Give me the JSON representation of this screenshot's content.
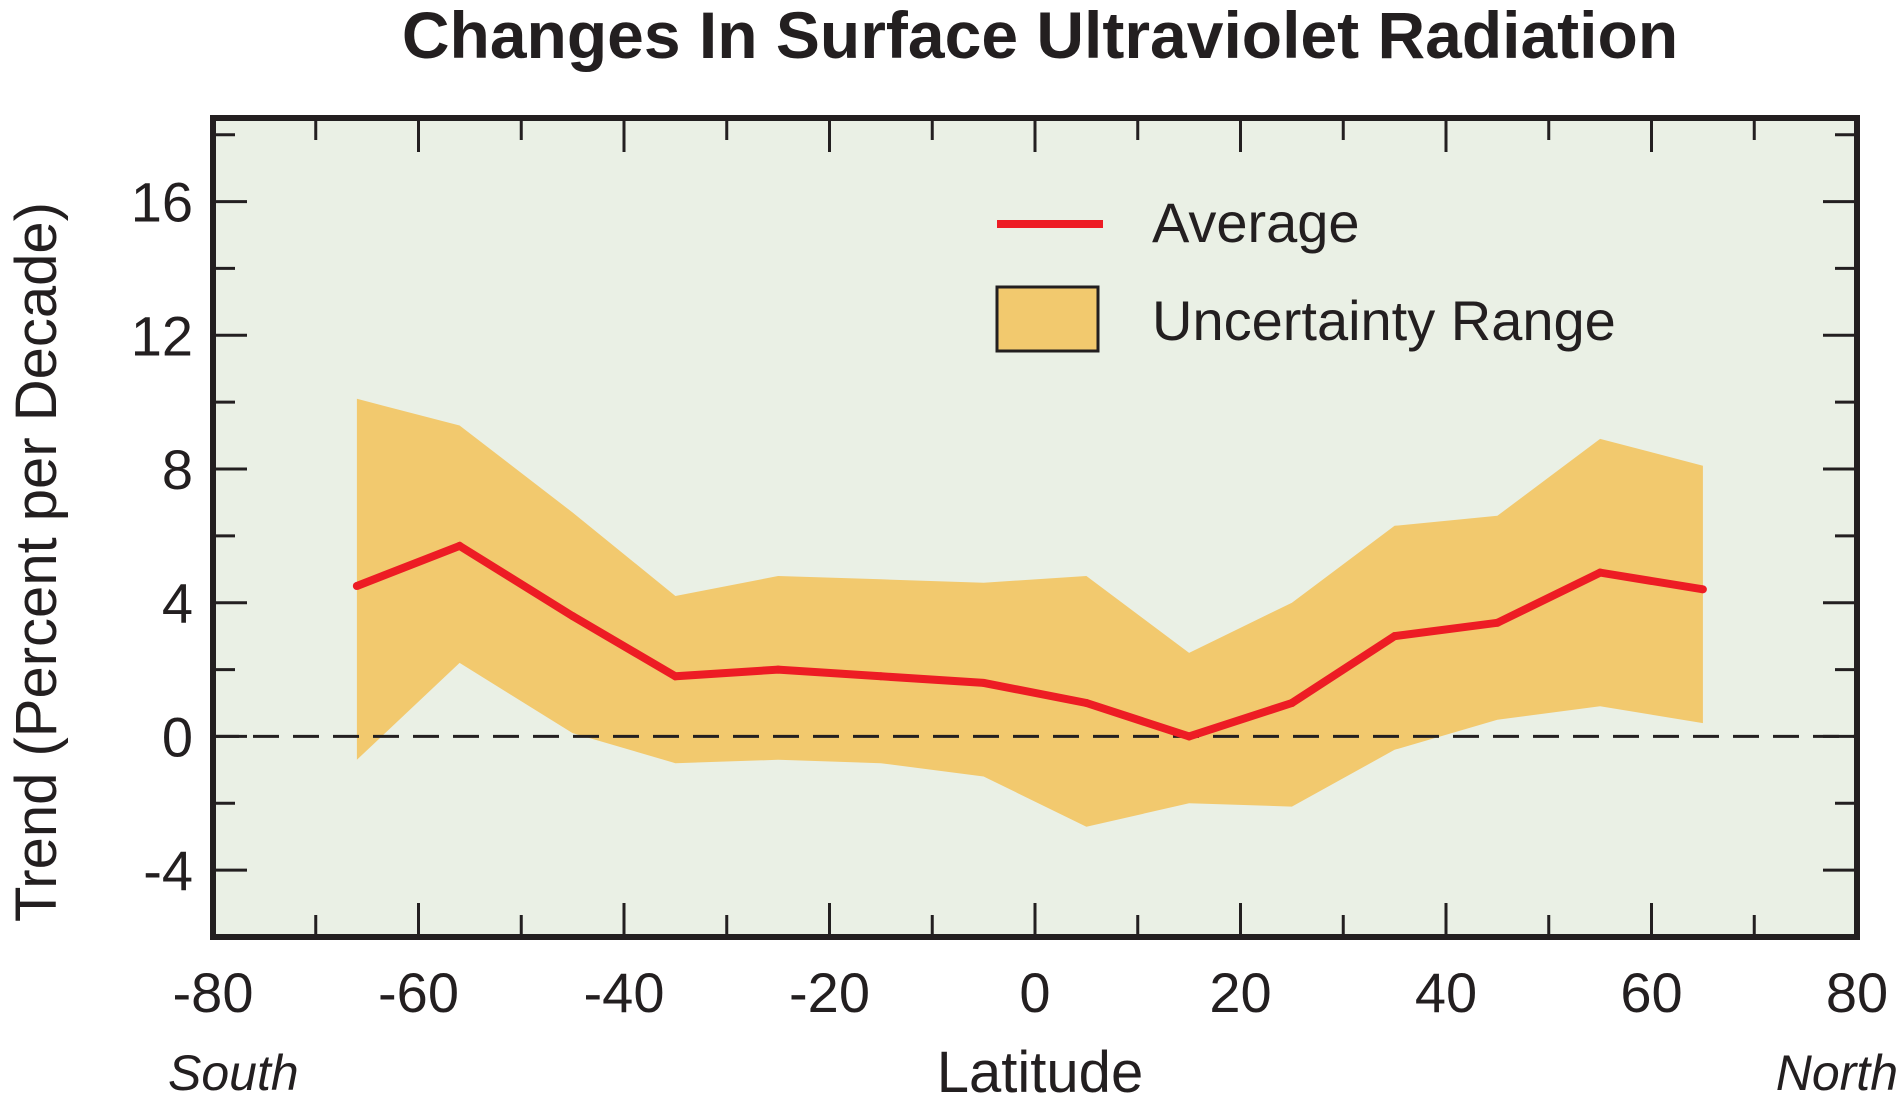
{
  "chart_data": {
    "type": "line",
    "title": "Changes In Surface Ultraviolet Radiation",
    "xlabel": "Latitude",
    "ylabel": "Trend (Percent per Decade)",
    "x_direction_labels": {
      "left": "South",
      "right": "North"
    },
    "xlim": [
      -80,
      80
    ],
    "ylim": [
      -6,
      18.5
    ],
    "x_ticks": [
      -80,
      -60,
      -40,
      -20,
      0,
      20,
      40,
      60,
      80
    ],
    "y_ticks": [
      -4,
      0,
      4,
      8,
      12,
      16
    ],
    "x": [
      -66,
      -56,
      -45,
      -35,
      -25,
      -15,
      -5,
      5,
      15,
      25,
      35,
      45,
      55,
      65
    ],
    "series": [
      {
        "name": "Average",
        "values": [
          4.5,
          5.7,
          3.6,
          1.8,
          2.0,
          1.8,
          1.6,
          1.0,
          0.0,
          1.0,
          3.0,
          3.4,
          4.9,
          4.4
        ],
        "color": "#ed1c24"
      },
      {
        "name": "Uncertainty Range",
        "type": "band",
        "upper": [
          10.1,
          9.3,
          6.7,
          4.2,
          4.8,
          4.7,
          4.6,
          4.8,
          2.5,
          4.0,
          6.3,
          6.6,
          8.9,
          8.1
        ],
        "lower": [
          -0.7,
          2.2,
          0.1,
          -0.8,
          -0.7,
          -0.8,
          -1.2,
          -2.7,
          -2.0,
          -2.1,
          -0.4,
          0.5,
          0.9,
          0.4
        ],
        "color": "#f2c96e"
      }
    ],
    "zero_line": {
      "y": 0,
      "style": "dashed"
    },
    "legend_position": "top-right",
    "background_color": "#eaf0e5",
    "grid": false
  }
}
